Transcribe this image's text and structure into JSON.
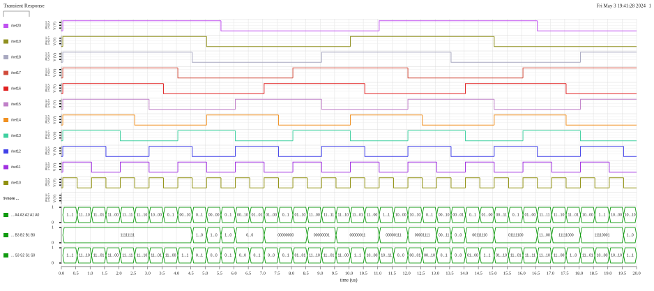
{
  "chart_data": {
    "type": "waveform",
    "title": "Transient Response",
    "timestamp": "Fri May 3 19:41:28 2024",
    "page": "1",
    "xlabel": "time (us)",
    "ylabel": "V (V)",
    "xlim": [
      0,
      20
    ],
    "grid": true,
    "xticks": [
      {
        "value": 0,
        "label": "0.0"
      },
      0.5,
      {
        "value": 1,
        "label": "1.0"
      },
      1.5,
      {
        "value": 2,
        "label": "2.0"
      },
      2.5,
      {
        "value": 3,
        "label": "3.0"
      },
      3.5,
      {
        "value": 4,
        "label": "4.0"
      },
      4.5,
      {
        "value": 5,
        "label": "5.0"
      },
      5.5,
      {
        "value": 6,
        "label": "6.0"
      },
      6.5,
      {
        "value": 7,
        "label": "7.0"
      },
      7.5,
      {
        "value": 8,
        "label": "8.0"
      },
      8.5,
      {
        "value": 9,
        "label": "9.0"
      },
      9.5,
      {
        "value": 10,
        "label": "10.0"
      },
      10.5,
      {
        "value": 11,
        "label": "11.0"
      },
      11.5,
      {
        "value": 12,
        "label": "12.0"
      },
      12.5,
      {
        "value": 13,
        "label": "13.0"
      },
      13.5,
      {
        "value": 14,
        "label": "14.0"
      },
      14.5,
      {
        "value": 15,
        "label": "15.0"
      },
      15.5,
      {
        "value": 16,
        "label": "16.0"
      },
      16.5,
      {
        "value": 17,
        "label": "17.0"
      },
      17.5,
      {
        "value": 18,
        "label": "18.0"
      },
      18.5,
      {
        "value": 19,
        "label": "19.0"
      },
      19.5,
      {
        "value": 20,
        "label": "20.0"
      }
    ],
    "panels": [
      {
        "type": "step",
        "name": "/net20",
        "color": "#c050f0",
        "ylim": [
          -0.1,
          1.9
        ],
        "yticks": [
          0.5,
          {
            "value": 1,
            "label": "1.0"
          },
          1.5
        ],
        "x": [
          0,
          0.05,
          5.55,
          11.05,
          16.55
        ],
        "values": [
          0,
          1.8,
          0,
          1.8,
          0
        ]
      },
      {
        "type": "step",
        "name": "/net19",
        "color": "#909020",
        "ylim": [
          -0.1,
          1.9
        ],
        "yticks": [
          0.5,
          {
            "value": 1,
            "label": "1.0"
          },
          1.5
        ],
        "x": [
          0,
          0.05,
          5.05,
          10.05,
          15.05
        ],
        "values": [
          0,
          1.8,
          0,
          1.8,
          0
        ]
      },
      {
        "type": "step",
        "name": "/net18",
        "color": "#a8a8c0",
        "ylim": [
          -0.1,
          1.9
        ],
        "yticks": [
          0.5,
          {
            "value": 1,
            "label": "1.0"
          },
          1.5
        ],
        "x": [
          0,
          0.05,
          4.55,
          9.05,
          13.55,
          18.05
        ],
        "values": [
          0,
          1.8,
          0,
          1.8,
          0,
          1.8
        ]
      },
      {
        "type": "step",
        "name": "/net17",
        "color": "#d04a3a",
        "ylim": [
          -0.1,
          1.9
        ],
        "yticks": [
          0.5,
          {
            "value": 1,
            "label": "1.0"
          },
          1.5
        ],
        "x": [
          0,
          0.05,
          4.05,
          8.05,
          12.05,
          16.05
        ],
        "values": [
          0,
          1.8,
          0,
          1.8,
          0,
          1.8
        ]
      },
      {
        "type": "step",
        "name": "/net16",
        "color": "#e02020",
        "ylim": [
          -0.1,
          1.9
        ],
        "yticks": [
          0.5,
          {
            "value": 1,
            "label": "1.0"
          },
          1.5
        ],
        "x": [
          0,
          0.05,
          3.55,
          7.05,
          10.55,
          14.05,
          17.55
        ],
        "values": [
          0,
          1.8,
          0,
          1.8,
          0,
          1.8,
          0
        ]
      },
      {
        "type": "step",
        "name": "/net15",
        "color": "#c080c8",
        "ylim": [
          -0.1,
          1.9
        ],
        "yticks": [
          0.5,
          {
            "value": 1,
            "label": "1.0"
          },
          1.5
        ],
        "x": [
          0,
          0.05,
          3.05,
          6.05,
          9.05,
          12.05,
          15.05,
          18.05
        ],
        "values": [
          0,
          1.8,
          0,
          1.8,
          0,
          1.8,
          0,
          1.8
        ]
      },
      {
        "type": "step",
        "name": "/net14",
        "color": "#f09020",
        "ylim": [
          -0.1,
          1.9
        ],
        "yticks": [
          0.5,
          {
            "value": 1,
            "label": "1.0"
          },
          1.5
        ],
        "x": [
          0,
          0.05,
          2.55,
          5.05,
          7.55,
          10.05,
          12.55,
          15.05,
          17.55
        ],
        "values": [
          0,
          1.8,
          0,
          1.8,
          0,
          1.8,
          0,
          1.8,
          0
        ]
      },
      {
        "type": "step",
        "name": "/net13",
        "color": "#40d0a0",
        "ylim": [
          -0.1,
          1.9
        ],
        "yticks": [
          0.5,
          {
            "value": 1,
            "label": "1.0"
          },
          1.5
        ],
        "x": [
          0,
          0.05,
          2.05,
          4.05,
          6.05,
          8.05,
          10.05,
          12.05,
          14.05,
          16.05,
          18.05
        ],
        "values": [
          0,
          1.8,
          0,
          1.8,
          0,
          1.8,
          0,
          1.8,
          0,
          1.8,
          0
        ]
      },
      {
        "type": "step",
        "name": "/net12",
        "color": "#4040e8",
        "ylim": [
          -0.1,
          1.9
        ],
        "yticks": [
          0.5,
          {
            "value": 1,
            "label": "1.0"
          },
          1.5
        ],
        "x": [
          0,
          0.05,
          1.55,
          3.05,
          4.55,
          6.05,
          7.55,
          9.05,
          10.55,
          12.05,
          13.55,
          15.05,
          16.55,
          18.05,
          19.55
        ],
        "values": [
          0,
          1.8,
          0,
          1.8,
          0,
          1.8,
          0,
          1.8,
          0,
          1.8,
          0,
          1.8,
          0,
          1.8,
          0
        ]
      },
      {
        "type": "step",
        "name": "/net11",
        "color": "#a030e0",
        "ylim": [
          -0.1,
          1.9
        ],
        "yticks": [
          0.5,
          {
            "value": 1,
            "label": "1.0"
          },
          1.5
        ],
        "x": [
          0,
          0.05,
          1.05,
          2.05,
          3.05,
          4.05,
          5.05,
          6.05,
          7.05,
          8.05,
          9.05,
          10.05,
          11.05,
          12.05,
          13.05,
          14.05,
          15.05,
          16.05,
          17.05,
          18.05,
          19.05
        ],
        "values": [
          0,
          1.8,
          0,
          1.8,
          0,
          1.8,
          0,
          1.8,
          0,
          1.8,
          0,
          1.8,
          0,
          1.8,
          0,
          1.8,
          0,
          1.8,
          0,
          1.8,
          0
        ]
      },
      {
        "type": "step",
        "name": "/net10",
        "color": "#909010",
        "ylim": [
          -0.1,
          1.9
        ],
        "yticks": [
          0.5,
          {
            "value": 1,
            "label": "1.0"
          },
          1.5
        ],
        "x": [
          0,
          0.05,
          0.55,
          1.05,
          1.55,
          2.05,
          2.55,
          3.05,
          3.55,
          4.05,
          4.55,
          5.05,
          5.55,
          6.05,
          6.55,
          7.05,
          7.55,
          8.05,
          8.55,
          9.05,
          9.55,
          10.05,
          10.55,
          11.05,
          11.55,
          12.05,
          12.55,
          13.05,
          13.55,
          14.05,
          14.55,
          15.05,
          15.55,
          16.05,
          16.55,
          17.05,
          17.55,
          18.05,
          18.55,
          19.05,
          19.55
        ],
        "values": [
          0,
          1.8,
          0,
          1.8,
          0,
          1.8,
          0,
          1.8,
          0,
          1.8,
          0,
          1.8,
          0,
          1.8,
          0,
          1.8,
          0,
          1.8,
          0,
          1.8,
          0,
          1.8,
          0,
          1.8,
          0,
          1.8,
          0,
          1.8,
          0,
          1.8,
          0,
          1.8,
          0,
          1.8,
          0,
          1.8,
          0,
          1.8,
          0,
          1.8,
          0
        ]
      },
      {
        "type": "step",
        "name": "9 more ...",
        "ylim": [
          -0.1,
          1.9
        ],
        "yticks": [
          0.5,
          {
            "value": 1,
            "label": "1.0"
          },
          1.5
        ]
      },
      {
        "type": "bus",
        "name": "... A4 A3 A2 A1 A0",
        "color": "#109a10",
        "ylim": [
          -0.05,
          1.05
        ],
        "yticks": [
          0,
          1
        ],
        "x": [
          0.05,
          0.55,
          1.05,
          1.55,
          2.05,
          2.55,
          3.05,
          3.55,
          4.05,
          4.55,
          5.05,
          5.55,
          6.05,
          6.55,
          7.05,
          7.55,
          8.05,
          8.55,
          9.05,
          9.55,
          10.05,
          10.55,
          11.05,
          11.55,
          12.05,
          12.55,
          13.05,
          13.55,
          14.05,
          14.55,
          15.05,
          15.55,
          16.05,
          16.55,
          17.05,
          17.55,
          18.05,
          18.55,
          19.05,
          19.55
        ],
        "labels": [
          "1...1",
          "11...10",
          "11...01",
          "11...00",
          "11...11",
          "11...10",
          "10...00",
          "0...1",
          "00...10",
          "0...1",
          "00...00",
          "0...1",
          "00...10",
          "01...01",
          "01...00",
          "0...1",
          "01...10",
          "11...00",
          "11...11",
          "11...10",
          "11...01",
          "11...00",
          "1...1",
          "10...00",
          "10...10",
          "0...1",
          "00...10",
          "00...01",
          "0...1",
          "01...00",
          "00...11",
          "0...1",
          "01...00",
          "11...11",
          "11...10",
          "11...01",
          "10...00",
          "1...1",
          "10...00",
          "10...10"
        ]
      },
      {
        "type": "bus",
        "name": "... B3 B2 B1 B0",
        "color": "#109a10",
        "ylim": [
          -0.05,
          1.05
        ],
        "yticks": [
          0,
          1
        ],
        "x": [
          0.05,
          4.55,
          5.05,
          5.55,
          6.05,
          7.05,
          8.55,
          9.55,
          11.05,
          12.05,
          13.05,
          13.55,
          14.05,
          15.05,
          16.55,
          17.05,
          18.05,
          19.55
        ],
        "labels": [
          "11111111",
          "1...0",
          "1...0",
          "1...0",
          "0...0",
          "00000000",
          "00000001",
          "00000011",
          "00000111",
          "00001111",
          "00...11",
          "0...0",
          "00111110",
          "01111100",
          "11...00",
          "11111000",
          "11110001",
          "1...0"
        ]
      },
      {
        "type": "bus",
        "name": "... S3 S2 S1 S0",
        "color": "#109a10",
        "ylim": [
          -0.05,
          1.05
        ],
        "yticks": [
          0,
          1
        ],
        "x": [
          0.05,
          0.55,
          1.05,
          1.55,
          2.05,
          2.55,
          3.05,
          3.55,
          4.05,
          4.55,
          5.05,
          5.55,
          6.05,
          6.55,
          7.05,
          7.55,
          8.05,
          8.55,
          9.05,
          9.55,
          10.05,
          10.55,
          11.05,
          11.55,
          12.05,
          12.55,
          13.05,
          13.55,
          14.05,
          14.55,
          15.05,
          15.55,
          16.05,
          16.55,
          17.05,
          17.55,
          18.05,
          18.55,
          19.05,
          19.55
        ],
        "labels": [
          "1...1",
          "11...10",
          "11...01",
          "11...00",
          "11...11",
          "11...10",
          "11...01",
          "11...00",
          "1...1",
          "0...1",
          "0...0",
          "0...1",
          "0...0",
          "0...1",
          "0...0",
          "0...1",
          "01...01",
          "11...10",
          "11...01",
          "11...00",
          "1...1",
          "10...00",
          "10...11",
          "0...0",
          "00...01",
          "00...10",
          "0...1",
          "0...0",
          "01...00",
          "1...1",
          "01...10",
          "11...01",
          "11...11",
          "11...10",
          "11...00",
          "1...0",
          "11...01",
          "10...00",
          "10...10",
          "1...1"
        ]
      }
    ]
  }
}
